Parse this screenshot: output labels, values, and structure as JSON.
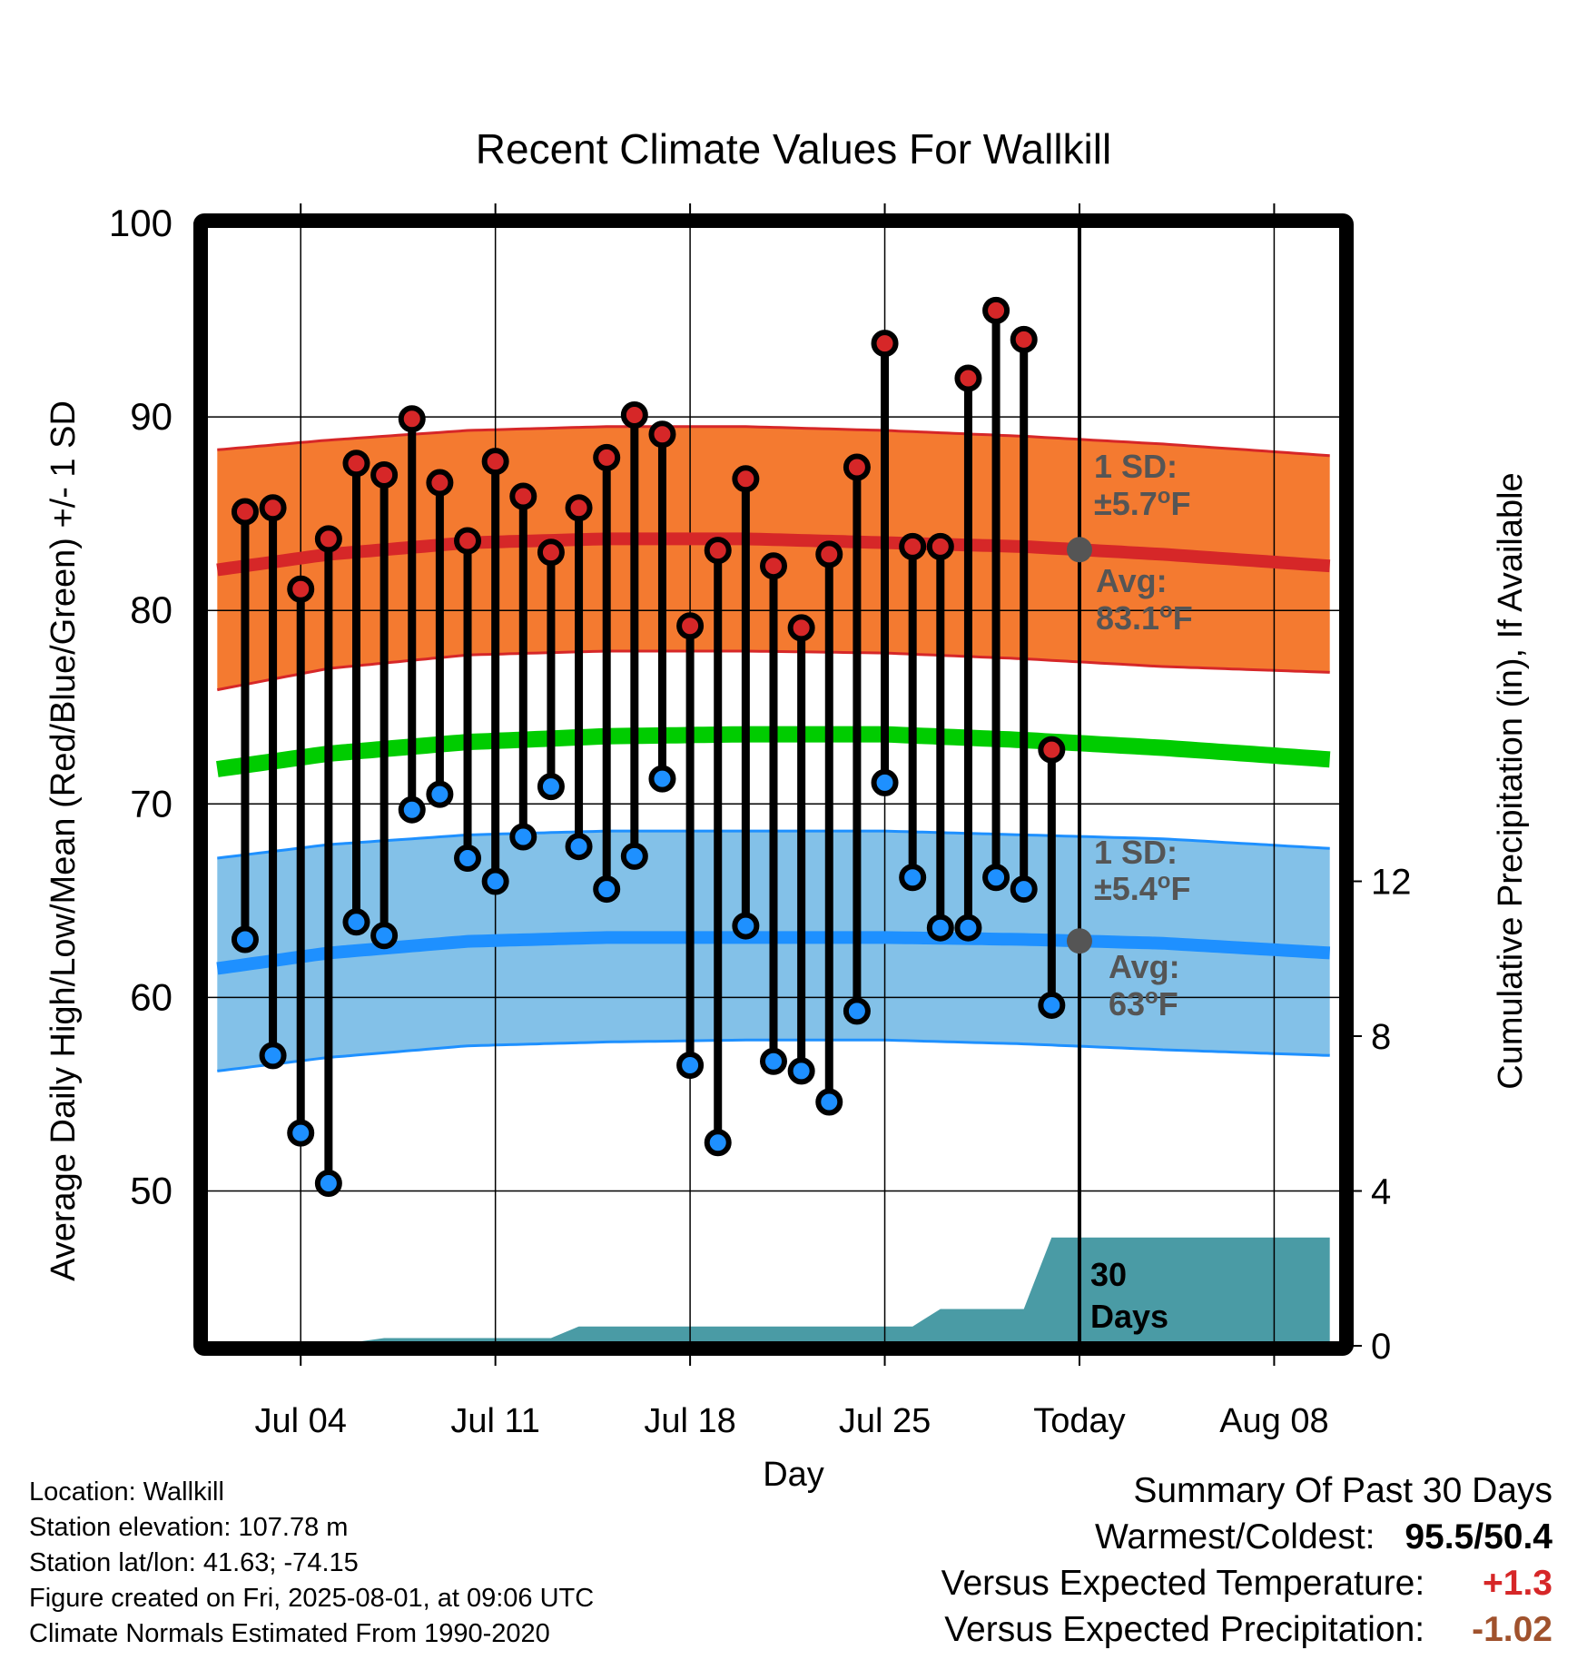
{
  "chart_data": {
    "type": "line",
    "title": "Recent Climate Values For Wallkill",
    "xlabel": "Day",
    "ylabel": "Average Daily High/Low/Mean (Red/Blue/Green) +/- 1 SD",
    "ylabel2": "Cumulative Precipitation (in), If Available",
    "ylim": [
      42,
      100
    ],
    "y_ticks": [
      "50",
      "60",
      "70",
      "80",
      "90",
      "100"
    ],
    "ylim2": [
      0,
      29
    ],
    "y2_ticks": [
      "0",
      "4",
      "8",
      "12"
    ],
    "x_tick_labels": [
      "Jul 04",
      "Jul 11",
      "Jul 18",
      "Jul 25",
      "Today",
      "Aug 08"
    ],
    "x_tick_days": [
      4,
      11,
      18,
      25,
      32,
      39
    ],
    "today_day": 32,
    "xlim": [
      0.5,
      41.5
    ],
    "grid": true,
    "observed": {
      "days": [
        2,
        3,
        4,
        5,
        6,
        7,
        8,
        9,
        10,
        11,
        12,
        13,
        14,
        15,
        16,
        17,
        18,
        19,
        20,
        21,
        22,
        23,
        24,
        25,
        26,
        27,
        28,
        29,
        30,
        31
      ],
      "high": [
        85.1,
        85.3,
        81.1,
        83.7,
        87.6,
        87.0,
        89.9,
        86.6,
        83.6,
        87.7,
        85.9,
        83.0,
        85.3,
        87.9,
        90.1,
        89.1,
        79.2,
        83.1,
        86.8,
        82.3,
        79.1,
        82.9,
        87.4,
        93.8,
        83.3,
        83.3,
        92.0,
        95.5,
        94.0,
        72.8
      ],
      "low": [
        63.0,
        57.0,
        53.0,
        50.4,
        63.9,
        63.2,
        69.7,
        70.5,
        67.2,
        66.0,
        68.3,
        70.9,
        67.8,
        65.6,
        67.3,
        71.3,
        56.5,
        52.5,
        63.7,
        56.7,
        56.2,
        54.6,
        59.3,
        71.1,
        66.2,
        63.6,
        63.6,
        66.2,
        65.6,
        59.6
      ]
    },
    "normals": {
      "days": [
        1,
        5,
        10,
        15,
        20,
        25,
        30,
        35,
        41
      ],
      "high_avg": [
        82.1,
        82.9,
        83.5,
        83.7,
        83.7,
        83.5,
        83.3,
        82.9,
        82.3
      ],
      "high_sd_upper": [
        88.3,
        88.8,
        89.3,
        89.5,
        89.5,
        89.3,
        89.0,
        88.6,
        88.0
      ],
      "high_sd_lower": [
        75.9,
        77.0,
        77.7,
        77.9,
        77.9,
        77.8,
        77.5,
        77.1,
        76.8
      ],
      "mean_avg": [
        71.8,
        72.6,
        73.2,
        73.5,
        73.6,
        73.6,
        73.3,
        72.9,
        72.3
      ],
      "low_avg": [
        61.5,
        62.3,
        62.9,
        63.1,
        63.1,
        63.1,
        63.0,
        62.8,
        62.3
      ],
      "low_sd_upper": [
        67.2,
        67.9,
        68.4,
        68.6,
        68.6,
        68.6,
        68.4,
        68.2,
        67.7
      ],
      "low_sd_lower": [
        56.2,
        56.9,
        57.5,
        57.7,
        57.8,
        57.8,
        57.6,
        57.3,
        57.0
      ]
    },
    "precipitation": {
      "days": [
        1,
        3,
        6,
        7,
        13,
        14,
        26,
        27,
        30,
        31,
        41
      ],
      "cumulative": [
        0.0,
        0.05,
        0.1,
        0.2,
        0.2,
        0.5,
        0.5,
        0.95,
        0.95,
        2.8,
        2.8
      ]
    },
    "annotations": {
      "high_sd_title": "1 SD:",
      "high_sd_value": "±5.7",
      "high_avg_title": "Avg:",
      "high_avg_value": "83.1",
      "low_sd_title": "1 SD:",
      "low_sd_value": "±5.4",
      "low_avg_title": "Avg:",
      "low_avg_value": "63",
      "degree_unit": "o",
      "f_unit": "F",
      "days_line1": "30",
      "days_line2": "Days"
    },
    "colors": {
      "high_dot": "#d62728",
      "low_dot": "#1e90ff",
      "high_band": "#f47a30",
      "high_line": "#d62728",
      "low_band": "#83c1e8",
      "low_line": "#1e90ff",
      "mean_line": "#00cc00",
      "precip_fill": "#4a9ba5",
      "marker_gray": "#555555"
    }
  },
  "footer": {
    "location": "Location: Wallkill",
    "elevation": "Station elevation: 107.78 m",
    "latlon": "Station lat/lon: 41.63; -74.15",
    "created": "Figure created on Fri, 2025-08-01, at 09:06 UTC",
    "normals": "Climate Normals Estimated From 1990-2020"
  },
  "summary": {
    "title": "Summary Of Past 30 Days",
    "warmest_label": "Warmest/Coldest:",
    "warmest_value": "95.5/50.4",
    "temp_label": "Versus Expected Temperature:",
    "temp_value": "+1.3",
    "temp_color": "#d62728",
    "precip_label": "Versus Expected Precipitation:",
    "precip_value": "-1.02",
    "precip_color": "#a0522d"
  }
}
